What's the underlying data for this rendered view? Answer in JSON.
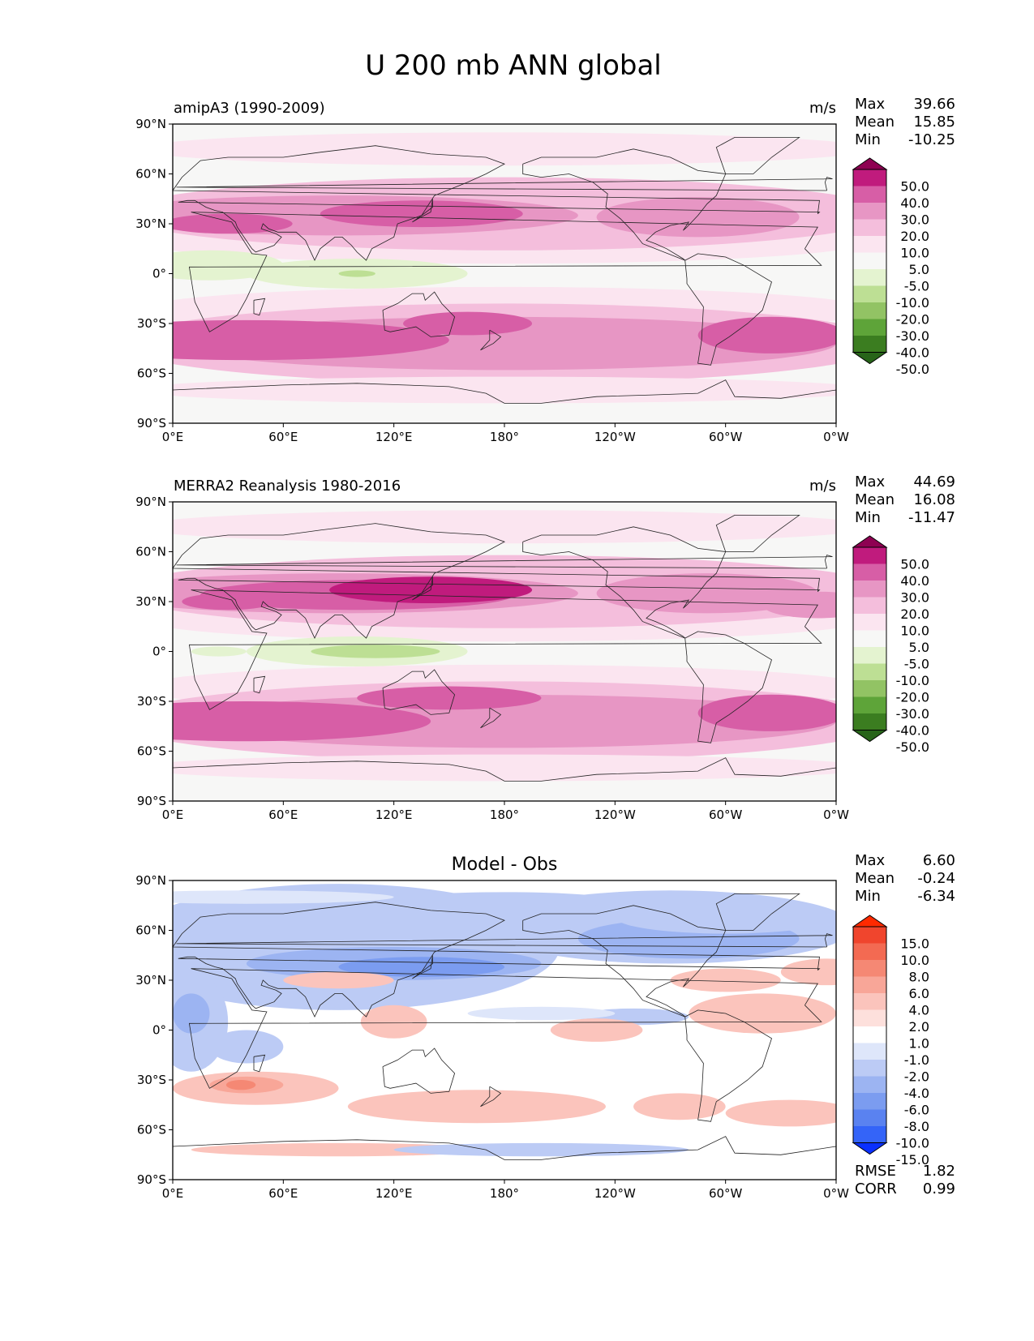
{
  "title": "U 200 mb ANN global",
  "colors": {
    "test_levels": [
      "#276419",
      "#3b7d20",
      "#5ea439",
      "#92c364",
      "#bddf94",
      "#e4f3d0",
      "#f7f7f6",
      "#fbe5f0",
      "#f4bedc",
      "#e796c4",
      "#d75ea6",
      "#c01b7d",
      "#8e0152"
    ],
    "diff_levels": [
      "#0a30ff",
      "#3464f8",
      "#5a82f0",
      "#7b9cf0",
      "#9cb4f2",
      "#bccbf5",
      "#dee6fa",
      "#ffffff",
      "#fde0dc",
      "#fbc4bc",
      "#f8a698",
      "#f58874",
      "#f36a52",
      "#f0452d",
      "#ff2a00"
    ],
    "coast": "#222222",
    "frame": "#000000"
  },
  "chart_data": [
    {
      "type": "contour_map",
      "panel": "test",
      "title_left": "amipA3 (1990-2009)",
      "title_right": "m/s",
      "stats": {
        "max_label": "Max",
        "max": "39.66",
        "mean_label": "Mean",
        "mean": "15.85",
        "min_label": "Min",
        "min": "-10.25"
      },
      "colorbar_levels": [
        "50.0",
        "40.0",
        "30.0",
        "20.0",
        "10.0",
        "5.0",
        "-5.0",
        "-10.0",
        "-20.0",
        "-30.0",
        "-40.0",
        "-50.0"
      ],
      "xticks": [
        "0°E",
        "60°E",
        "120°E",
        "180°",
        "120°W",
        "60°W",
        "0°W"
      ],
      "yticks": [
        "90°N",
        "60°N",
        "30°N",
        "0°",
        "30°S",
        "60°S",
        "90°S"
      ],
      "xlim": [
        0,
        360
      ],
      "ylim": [
        -90,
        90
      ]
    },
    {
      "type": "contour_map",
      "panel": "reference",
      "title_left": "MERRA2 Reanalysis 1980-2016",
      "title_right": "m/s",
      "stats": {
        "max_label": "Max",
        "max": "44.69",
        "mean_label": "Mean",
        "mean": "16.08",
        "min_label": "Min",
        "min": "-11.47"
      },
      "colorbar_levels": [
        "50.0",
        "40.0",
        "30.0",
        "20.0",
        "10.0",
        "5.0",
        "-5.0",
        "-10.0",
        "-20.0",
        "-30.0",
        "-40.0",
        "-50.0"
      ],
      "xticks": [
        "0°E",
        "60°E",
        "120°E",
        "180°",
        "120°W",
        "60°W",
        "0°W"
      ],
      "yticks": [
        "90°N",
        "60°N",
        "30°N",
        "0°",
        "30°S",
        "60°S",
        "90°S"
      ],
      "xlim": [
        0,
        360
      ],
      "ylim": [
        -90,
        90
      ]
    },
    {
      "type": "contour_map",
      "panel": "difference",
      "title_center": "Model - Obs",
      "stats": {
        "max_label": "Max",
        "max": "6.60",
        "mean_label": "Mean",
        "mean": "-0.24",
        "min_label": "Min",
        "min": "-6.34"
      },
      "extra_stats": {
        "rmse_label": "RMSE",
        "rmse": "1.82",
        "corr_label": "CORR",
        "corr": "0.99"
      },
      "colorbar_levels": [
        "15.0",
        "10.0",
        "8.0",
        "6.0",
        "4.0",
        "2.0",
        "1.0",
        "-1.0",
        "-2.0",
        "-4.0",
        "-6.0",
        "-8.0",
        "-10.0",
        "-15.0"
      ],
      "xticks": [
        "0°E",
        "60°E",
        "120°E",
        "180°",
        "120°W",
        "60°W",
        "0°W"
      ],
      "yticks": [
        "90°N",
        "60°N",
        "30°N",
        "0°",
        "30°S",
        "60°S",
        "90°S"
      ],
      "xlim": [
        0,
        360
      ],
      "ylim": [
        -90,
        90
      ]
    }
  ]
}
